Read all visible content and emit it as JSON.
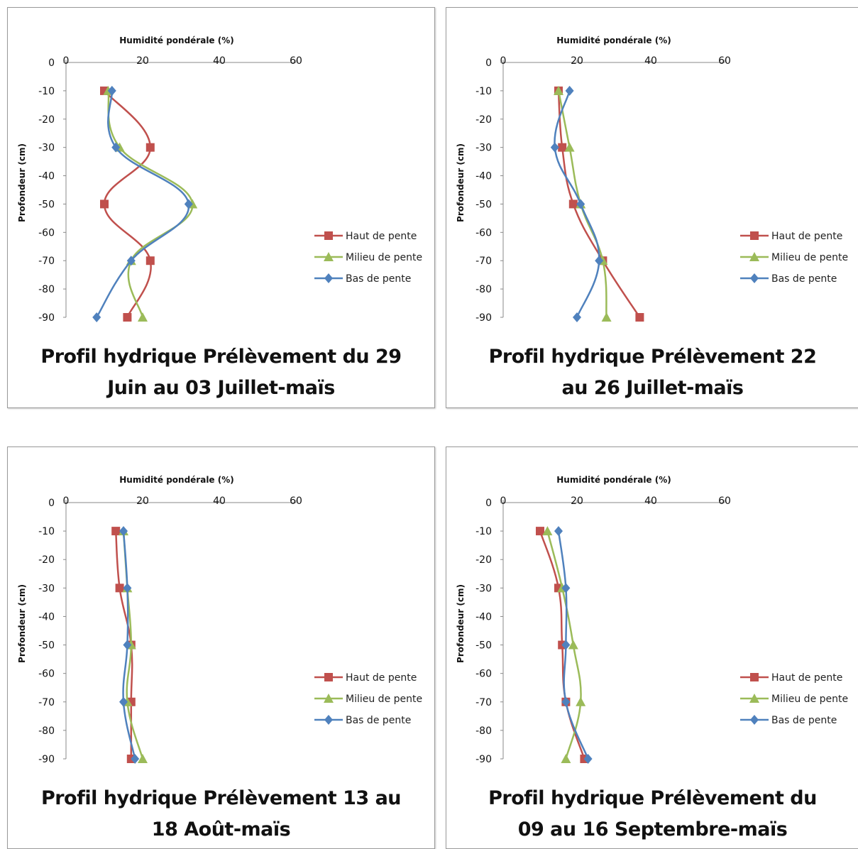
{
  "series_colors": {
    "haut": "#c0504d",
    "milieu": "#9bbb59",
    "bas": "#4f81bd"
  },
  "chart_data": [
    {
      "type": "line",
      "title": "Profil hydrique Prélèvement du 29 Juin au 03 Juillet-maïs",
      "xlabel": "Humidité pondérale (%)",
      "ylabel": "Profondeur (cm)",
      "xlim": [
        0,
        60
      ],
      "ylim": [
        -90,
        0
      ],
      "xticks": [
        "0",
        "20",
        "40",
        "60"
      ],
      "yticks": [
        "0",
        "-10",
        "-20",
        "-30",
        "-40",
        "-50",
        "-60",
        "-70",
        "-80",
        "-90"
      ],
      "legend_position": "right",
      "series": [
        {
          "name": "Haut de pente",
          "x": [
            10,
            22,
            10,
            22,
            16
          ],
          "y": [
            -10,
            -30,
            -50,
            -70,
            -90
          ]
        },
        {
          "name": "Milieu de pente",
          "x": [
            11,
            14,
            33,
            17,
            20
          ],
          "y": [
            -10,
            -30,
            -50,
            -70,
            -90
          ]
        },
        {
          "name": "Bas de pente",
          "x": [
            12,
            13,
            32,
            17,
            8
          ],
          "y": [
            -10,
            -30,
            -50,
            -70,
            -90
          ]
        }
      ]
    },
    {
      "type": "line",
      "title": "Profil hydrique Prélèvement 22 au 26 Juillet-maïs",
      "xlabel": "Humidité pondérale (%)",
      "ylabel": "Profondeur (cm)",
      "xlim": [
        0,
        60
      ],
      "ylim": [
        -90,
        0
      ],
      "xticks": [
        "0",
        "20",
        "40",
        "60"
      ],
      "yticks": [
        "0",
        "-10",
        "-20",
        "-30",
        "-40",
        "-50",
        "-60",
        "-70",
        "-80",
        "-90"
      ],
      "legend_position": "right",
      "series": [
        {
          "name": "Haut de pente",
          "x": [
            15,
            16,
            19,
            27,
            37
          ],
          "y": [
            -10,
            -30,
            -50,
            -70,
            -90
          ]
        },
        {
          "name": "Milieu de pente",
          "x": [
            15,
            18,
            21,
            27,
            28
          ],
          "y": [
            -10,
            -30,
            -50,
            -70,
            -90
          ]
        },
        {
          "name": "Bas de pente",
          "x": [
            18,
            14,
            21,
            26,
            20
          ],
          "y": [
            -10,
            -30,
            -50,
            -70,
            -90
          ]
        }
      ]
    },
    {
      "type": "line",
      "title": "Profil hydrique Prélèvement 13 au 18 Août-maïs",
      "xlabel": "Humidité pondérale (%)",
      "ylabel": "Profondeur (cm)",
      "xlim": [
        0,
        60
      ],
      "ylim": [
        -90,
        0
      ],
      "xticks": [
        "0",
        "20",
        "40",
        "60"
      ],
      "yticks": [
        "0",
        "-10",
        "-20",
        "-30",
        "-40",
        "-50",
        "-60",
        "-70",
        "-80",
        "-90"
      ],
      "legend_position": "right",
      "series": [
        {
          "name": "Haut de pente",
          "x": [
            13,
            14,
            17,
            17,
            17
          ],
          "y": [
            -10,
            -30,
            -50,
            -70,
            -90
          ]
        },
        {
          "name": "Milieu de pente",
          "x": [
            15,
            16,
            17,
            16,
            20
          ],
          "y": [
            -10,
            -30,
            -50,
            -70,
            -90
          ]
        },
        {
          "name": "Bas de pente",
          "x": [
            15,
            16,
            16,
            15,
            18
          ],
          "y": [
            -10,
            -30,
            -50,
            -70,
            -90
          ]
        }
      ]
    },
    {
      "type": "line",
      "title": "Profil hydrique Prélèvement du 09 au 16 Septembre-maïs",
      "xlabel": "Humidité pondérale (%)",
      "ylabel": "Profondeur (cm)",
      "xlim": [
        0,
        60
      ],
      "ylim": [
        -90,
        0
      ],
      "xticks": [
        "0",
        "20",
        "40",
        "60"
      ],
      "yticks": [
        "0",
        "-10",
        "-20",
        "-30",
        "-40",
        "-50",
        "-60",
        "-70",
        "-80",
        "-90"
      ],
      "legend_position": "right",
      "series": [
        {
          "name": "Haut de pente",
          "x": [
            10,
            15,
            16,
            17,
            22
          ],
          "y": [
            -10,
            -30,
            -50,
            -70,
            -90
          ]
        },
        {
          "name": "Milieu de pente",
          "x": [
            12,
            16,
            19,
            21,
            17
          ],
          "y": [
            -10,
            -30,
            -50,
            -70,
            -90
          ]
        },
        {
          "name": "Bas de pente",
          "x": [
            15,
            17,
            17,
            17,
            23
          ],
          "y": [
            -10,
            -30,
            -50,
            -70,
            -90
          ]
        }
      ]
    }
  ]
}
